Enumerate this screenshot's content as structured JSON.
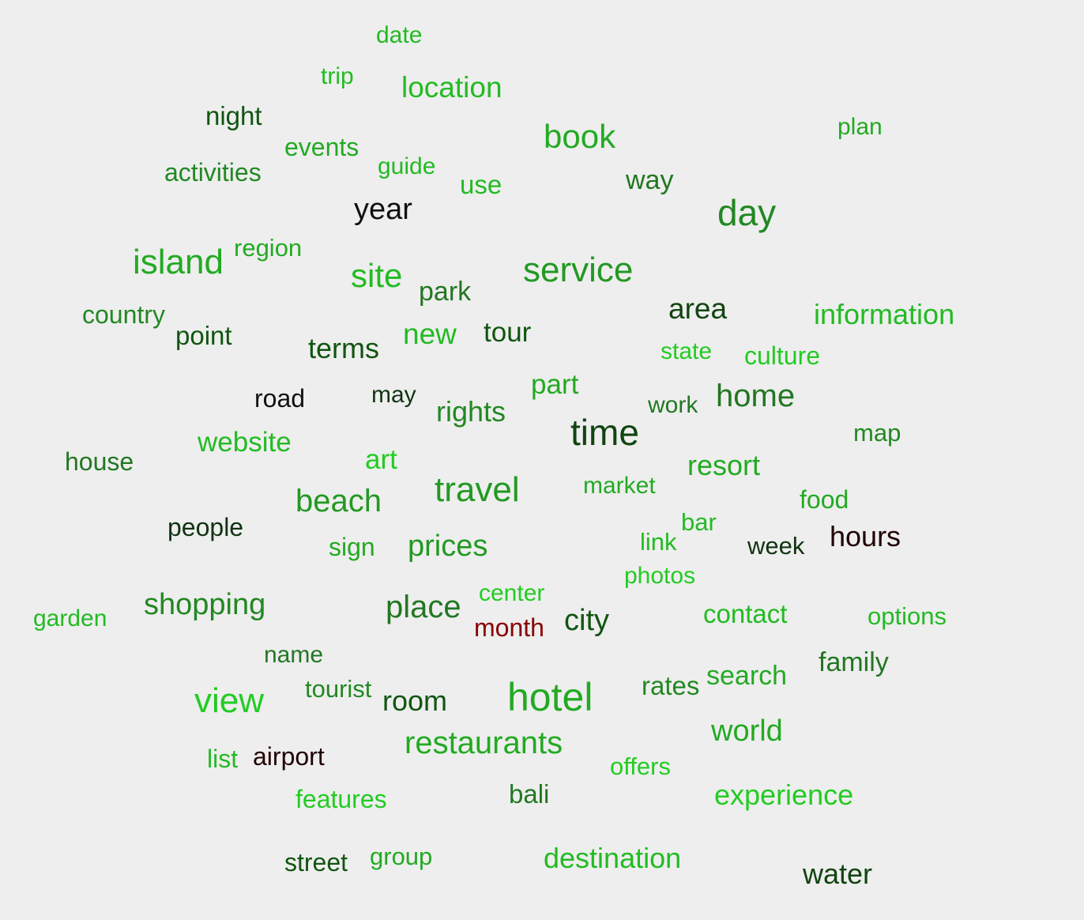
{
  "words": [
    {
      "text": "date",
      "color": "#22bb22"
    },
    {
      "text": "trip",
      "color": "#22bb22"
    },
    {
      "text": "location",
      "color": "#22bb22"
    },
    {
      "text": "night",
      "color": "#115511"
    },
    {
      "text": "plan",
      "color": "#22aa22"
    },
    {
      "text": "book",
      "color": "#22aa22"
    },
    {
      "text": "events",
      "color": "#22aa22"
    },
    {
      "text": "activities",
      "color": "#228822"
    },
    {
      "text": "guide",
      "color": "#22bb22"
    },
    {
      "text": "use",
      "color": "#22bb22"
    },
    {
      "text": "way",
      "color": "#227722"
    },
    {
      "text": "year",
      "color": "#111111"
    },
    {
      "text": "day",
      "color": "#228822"
    },
    {
      "text": "island",
      "color": "#22aa22"
    },
    {
      "text": "region",
      "color": "#22aa22"
    },
    {
      "text": "site",
      "color": "#22bb22"
    },
    {
      "text": "park",
      "color": "#227722"
    },
    {
      "text": "service",
      "color": "#229922"
    },
    {
      "text": "country",
      "color": "#228822"
    },
    {
      "text": "point",
      "color": "#115511"
    },
    {
      "text": "area",
      "color": "#114411"
    },
    {
      "text": "information",
      "color": "#22bb22"
    },
    {
      "text": "terms",
      "color": "#115511"
    },
    {
      "text": "new",
      "color": "#22bb22"
    },
    {
      "text": "tour",
      "color": "#115511"
    },
    {
      "text": "state",
      "color": "#22cc22"
    },
    {
      "text": "culture",
      "color": "#22cc22"
    },
    {
      "text": "road",
      "color": "#111111"
    },
    {
      "text": "may",
      "color": "#113311"
    },
    {
      "text": "part",
      "color": "#22aa22"
    },
    {
      "text": "rights",
      "color": "#228822"
    },
    {
      "text": "work",
      "color": "#227722"
    },
    {
      "text": "home",
      "color": "#227722"
    },
    {
      "text": "time",
      "color": "#114411"
    },
    {
      "text": "website",
      "color": "#22bb22"
    },
    {
      "text": "house",
      "color": "#227722"
    },
    {
      "text": "art",
      "color": "#22cc22"
    },
    {
      "text": "map",
      "color": "#228822"
    },
    {
      "text": "resort",
      "color": "#22aa22"
    },
    {
      "text": "market",
      "color": "#22aa22"
    },
    {
      "text": "travel",
      "color": "#229922"
    },
    {
      "text": "beach",
      "color": "#229922"
    },
    {
      "text": "food",
      "color": "#22aa22"
    },
    {
      "text": "people",
      "color": "#113311"
    },
    {
      "text": "bar",
      "color": "#22bb22"
    },
    {
      "text": "sign",
      "color": "#22aa22"
    },
    {
      "text": "prices",
      "color": "#229922"
    },
    {
      "text": "link",
      "color": "#22bb22"
    },
    {
      "text": "week",
      "color": "#113311"
    },
    {
      "text": "hours",
      "color": "#220000"
    },
    {
      "text": "photos",
      "color": "#22cc22"
    },
    {
      "text": "center",
      "color": "#22cc22"
    },
    {
      "text": "shopping",
      "color": "#228822"
    },
    {
      "text": "place",
      "color": "#227722"
    },
    {
      "text": "garden",
      "color": "#22bb22"
    },
    {
      "text": "month",
      "color": "#880000"
    },
    {
      "text": "city",
      "color": "#115511"
    },
    {
      "text": "contact",
      "color": "#22bb22"
    },
    {
      "text": "options",
      "color": "#22bb22"
    },
    {
      "text": "name",
      "color": "#227722"
    },
    {
      "text": "family",
      "color": "#227722"
    },
    {
      "text": "search",
      "color": "#22aa22"
    },
    {
      "text": "tourist",
      "color": "#228822"
    },
    {
      "text": "view",
      "color": "#22cc22"
    },
    {
      "text": "room",
      "color": "#115511"
    },
    {
      "text": "hotel",
      "color": "#22aa22"
    },
    {
      "text": "rates",
      "color": "#228822"
    },
    {
      "text": "world",
      "color": "#22aa22"
    },
    {
      "text": "restaurants",
      "color": "#22aa22"
    },
    {
      "text": "list",
      "color": "#22bb22"
    },
    {
      "text": "airport",
      "color": "#220000"
    },
    {
      "text": "offers",
      "color": "#22cc22"
    },
    {
      "text": "features",
      "color": "#22cc22"
    },
    {
      "text": "bali",
      "color": "#227722"
    },
    {
      "text": "experience",
      "color": "#22cc22"
    },
    {
      "text": "destination",
      "color": "#22bb22"
    },
    {
      "text": "street",
      "color": "#115511"
    },
    {
      "text": "group",
      "color": "#22aa22"
    },
    {
      "text": "water",
      "color": "#114411"
    }
  ]
}
